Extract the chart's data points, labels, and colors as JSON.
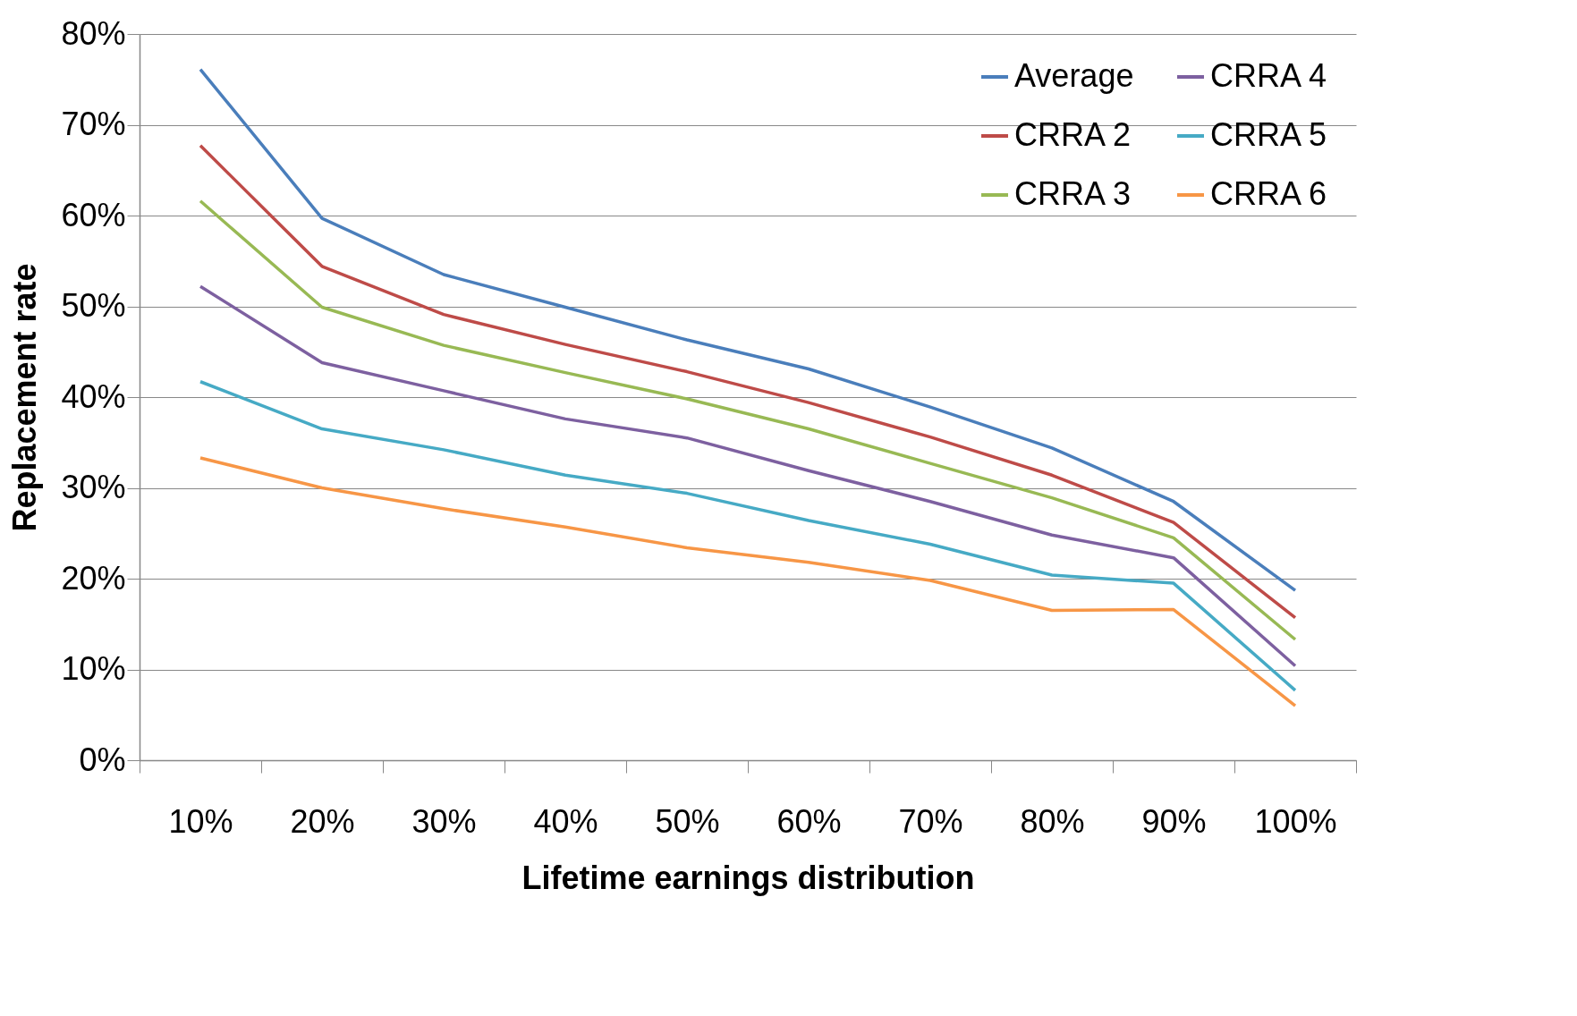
{
  "chart_data": {
    "type": "line",
    "xlabel": "Lifetime earnings distribution",
    "ylabel": "Replacement rate",
    "categories": [
      "10%",
      "20%",
      "30%",
      "40%",
      "50%",
      "60%",
      "70%",
      "80%",
      "90%",
      "100%"
    ],
    "ylim": [
      0,
      80
    ],
    "yticks": [
      {
        "value": 0,
        "label": "0%"
      },
      {
        "value": 10,
        "label": "10%"
      },
      {
        "value": 20,
        "label": "20%"
      },
      {
        "value": 30,
        "label": "30%"
      },
      {
        "value": 40,
        "label": "40%"
      },
      {
        "value": 50,
        "label": "50%"
      },
      {
        "value": 60,
        "label": "60%"
      },
      {
        "value": 70,
        "label": "70%"
      },
      {
        "value": 80,
        "label": "80%"
      }
    ],
    "grid": "y",
    "legend": "top right",
    "marker": "none",
    "line_style": "solid",
    "series": [
      {
        "name": "Average",
        "color": "#4a7ebb",
        "values": [
          76.1,
          59.7,
          53.5,
          49.9,
          46.3,
          43.1,
          38.9,
          34.4,
          28.5,
          18.7
        ]
      },
      {
        "name": "CRRA 2",
        "color": "#be4b48",
        "values": [
          67.7,
          54.4,
          49.1,
          45.8,
          42.8,
          39.4,
          35.6,
          31.4,
          26.2,
          15.7
        ]
      },
      {
        "name": "CRRA 3",
        "color": "#98b954",
        "values": [
          61.6,
          49.9,
          45.7,
          42.7,
          39.8,
          36.5,
          32.7,
          28.9,
          24.5,
          13.3
        ]
      },
      {
        "name": "CRRA 4",
        "color": "#7d60a0",
        "values": [
          52.2,
          43.8,
          40.7,
          37.6,
          35.5,
          31.9,
          28.5,
          24.8,
          22.3,
          10.4
        ]
      },
      {
        "name": "CRRA 5",
        "color": "#46aac5",
        "values": [
          41.7,
          36.5,
          34.2,
          31.4,
          29.4,
          26.4,
          23.8,
          20.4,
          19.5,
          7.7
        ]
      },
      {
        "name": "CRRA 6",
        "color": "#f79646",
        "values": [
          33.3,
          30.0,
          27.7,
          25.7,
          23.4,
          21.8,
          19.8,
          16.5,
          16.6,
          6.0
        ]
      }
    ]
  }
}
